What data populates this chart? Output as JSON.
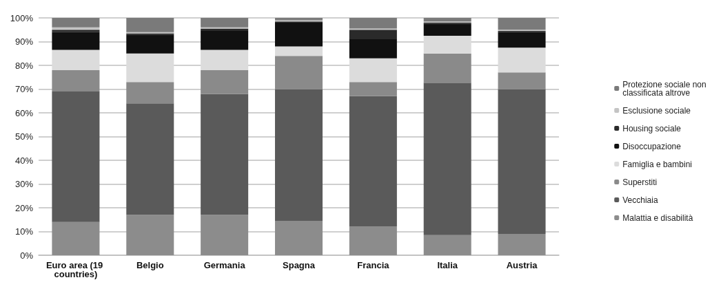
{
  "chart_data": {
    "type": "bar",
    "stacked": true,
    "categories": [
      "Euro area (19 countries)",
      "Belgio",
      "Germania",
      "Spagna",
      "Francia",
      "Italia",
      "Austria"
    ],
    "series": [
      {
        "name": "Malattia e disabilità",
        "color": "#8c8c8c",
        "values": [
          14,
          17,
          17,
          14.5,
          12,
          8.5,
          9
        ]
      },
      {
        "name": "Vecchiaia",
        "color": "#5a5a5a",
        "values": [
          55,
          47,
          51,
          55.5,
          55,
          64,
          61
        ]
      },
      {
        "name": "Superstiti",
        "color": "#8a8a8a",
        "values": [
          9,
          9,
          10,
          14,
          6,
          12.5,
          7
        ]
      },
      {
        "name": "Famiglia e bambini",
        "color": "#dcdcdc",
        "values": [
          8.5,
          12,
          8.5,
          4,
          10,
          7.5,
          10.5
        ]
      },
      {
        "name": "Disoccupazione",
        "color": "#111111",
        "values": [
          7.5,
          8,
          8,
          10,
          8,
          5,
          6.5
        ]
      },
      {
        "name": "Housing sociale",
        "color": "#2a2a2a",
        "values": [
          1,
          0.5,
          1,
          0.5,
          4,
          0.5,
          0.5
        ]
      },
      {
        "name": "Esclusione sociale",
        "color": "#c4c4c4",
        "values": [
          1,
          0.5,
          0.5,
          0.5,
          0.5,
          0.5,
          0.5
        ]
      },
      {
        "name": "Protezione sociale non classificata altrove",
        "color": "#7a7a7a",
        "values": [
          4,
          6,
          4,
          1,
          4.5,
          1.5,
          5
        ]
      }
    ],
    "ylim": [
      0,
      100
    ],
    "yticks": [
      {
        "value": 0,
        "label": "0%"
      },
      {
        "value": 10,
        "label": "10%"
      },
      {
        "value": 20,
        "label": "20%"
      },
      {
        "value": 30,
        "label": "30%"
      },
      {
        "value": 40,
        "label": "40%"
      },
      {
        "value": 50,
        "label": "50%"
      },
      {
        "value": 60,
        "label": "60%"
      },
      {
        "value": 70,
        "label": "70%"
      },
      {
        "value": 80,
        "label": "80%"
      },
      {
        "value": 90,
        "label": "90%"
      },
      {
        "value": 100,
        "label": "100%"
      }
    ],
    "grid": "y",
    "legend": "right"
  }
}
